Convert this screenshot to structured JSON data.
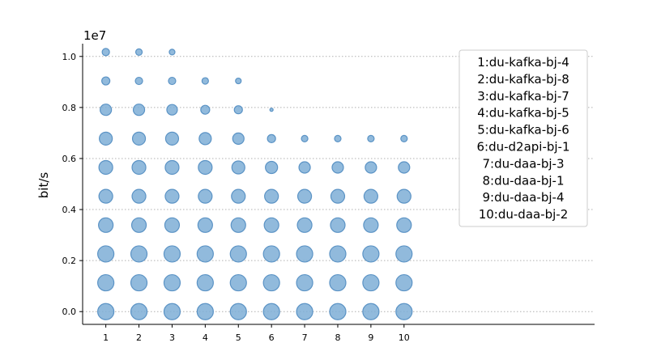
{
  "chart_data": {
    "type": "scatter",
    "ylabel": "bit/s",
    "offset_label": "1e7",
    "xticks": [
      "1",
      "2",
      "3",
      "4",
      "5",
      "6",
      "7",
      "8",
      "9",
      "10"
    ],
    "yticks": [
      "0.0",
      "0.2",
      "0.4",
      "0.6",
      "0.8",
      "1.0"
    ],
    "xlim": [
      0.3,
      15.75
    ],
    "ylim": [
      -0.05,
      1.05
    ],
    "grid": "horizontal dotted",
    "legend_position": "top-right",
    "legend_entries": [
      "1:du-kafka-bj-4",
      "2:du-kafka-bj-8",
      "3:du-kafka-bj-7",
      "4:du-kafka-bj-5",
      "5:du-kafka-bj-6",
      "6:du-d2api-bj-1",
      "7:du-daa-bj-3",
      "8:du-daa-bj-1",
      "9:du-daa-bj-4",
      "10:du-daa-bj-2"
    ],
    "color": "#7eaed6",
    "edge_color": "#5b93c5",
    "rows": [
      {
        "y": 0.0,
        "sizes": [
          10,
          10,
          10,
          10,
          10,
          10,
          10,
          10,
          10,
          10
        ]
      },
      {
        "y": 0.113,
        "sizes": [
          10,
          10,
          10,
          10,
          10,
          10,
          10,
          10,
          10,
          10
        ]
      },
      {
        "y": 0.226,
        "sizes": [
          10,
          10,
          10,
          10,
          10,
          10,
          10,
          10,
          10,
          10
        ]
      },
      {
        "y": 0.339,
        "sizes": [
          9,
          9,
          9,
          9,
          9,
          9,
          9,
          9,
          9,
          9
        ]
      },
      {
        "y": 0.452,
        "sizes": [
          8.5,
          8.5,
          8.5,
          8.5,
          8.5,
          8.5,
          8.5,
          8.5,
          8.5,
          8.5
        ]
      },
      {
        "y": 0.565,
        "sizes": [
          8.5,
          8.5,
          8.5,
          8.5,
          8,
          7.5,
          7,
          7,
          7,
          7
        ]
      },
      {
        "y": 0.678,
        "sizes": [
          8,
          8,
          8,
          7.5,
          7,
          5,
          4,
          4,
          4,
          4
        ]
      },
      {
        "y": 0.791,
        "sizes": [
          7,
          7,
          6.5,
          5.5,
          5,
          2,
          null,
          null,
          null,
          null
        ]
      },
      {
        "y": 0.904,
        "sizes": [
          5,
          4.5,
          4.5,
          4,
          3.5,
          null,
          null,
          null,
          null,
          null
        ]
      },
      {
        "y": 1.017,
        "sizes": [
          4.5,
          4,
          3.5,
          null,
          null,
          null,
          null,
          null,
          null,
          null
        ]
      }
    ]
  }
}
